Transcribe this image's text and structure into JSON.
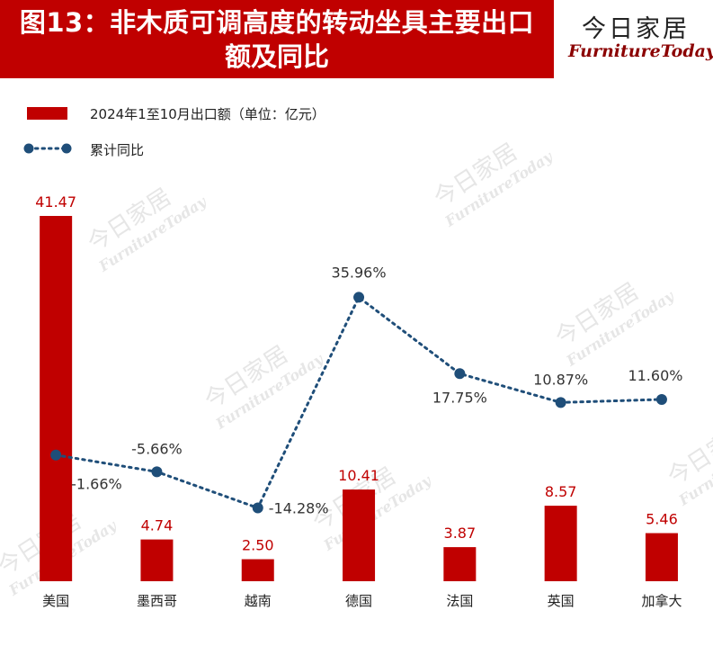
{
  "header": {
    "title_line1": "图13：非木质可调高度的转动坐具主要出口",
    "title_line2": "额及同比",
    "logo_cn": "今日家居",
    "logo_en": "FurnitureToday"
  },
  "colors": {
    "bar": "#c00000",
    "line": "#1f4e79",
    "header_bg": "#c00000"
  },
  "chart_data": {
    "type": "bar+line",
    "title": "图13：非木质可调高度的转动坐具主要出口额及同比",
    "categories": [
      "美国",
      "墨西哥",
      "越南",
      "德国",
      "法国",
      "英国",
      "加拿大"
    ],
    "series": [
      {
        "name": "2024年1至10月出口额（单位：亿元）",
        "type": "bar",
        "values": [
          41.47,
          4.74,
          2.5,
          10.41,
          3.87,
          8.57,
          5.46
        ],
        "labels": [
          "41.47",
          "4.74",
          "2.50",
          "10.41",
          "3.87",
          "8.57",
          "5.46"
        ]
      },
      {
        "name": "累计同比",
        "type": "line",
        "values": [
          -1.66,
          -5.66,
          -14.28,
          35.96,
          17.75,
          10.87,
          11.6
        ],
        "labels": [
          "-1.66%",
          "-5.66%",
          "-14.28%",
          "35.96%",
          "17.75%",
          "10.87%",
          "11.60%"
        ]
      }
    ],
    "legend": "top-left"
  }
}
